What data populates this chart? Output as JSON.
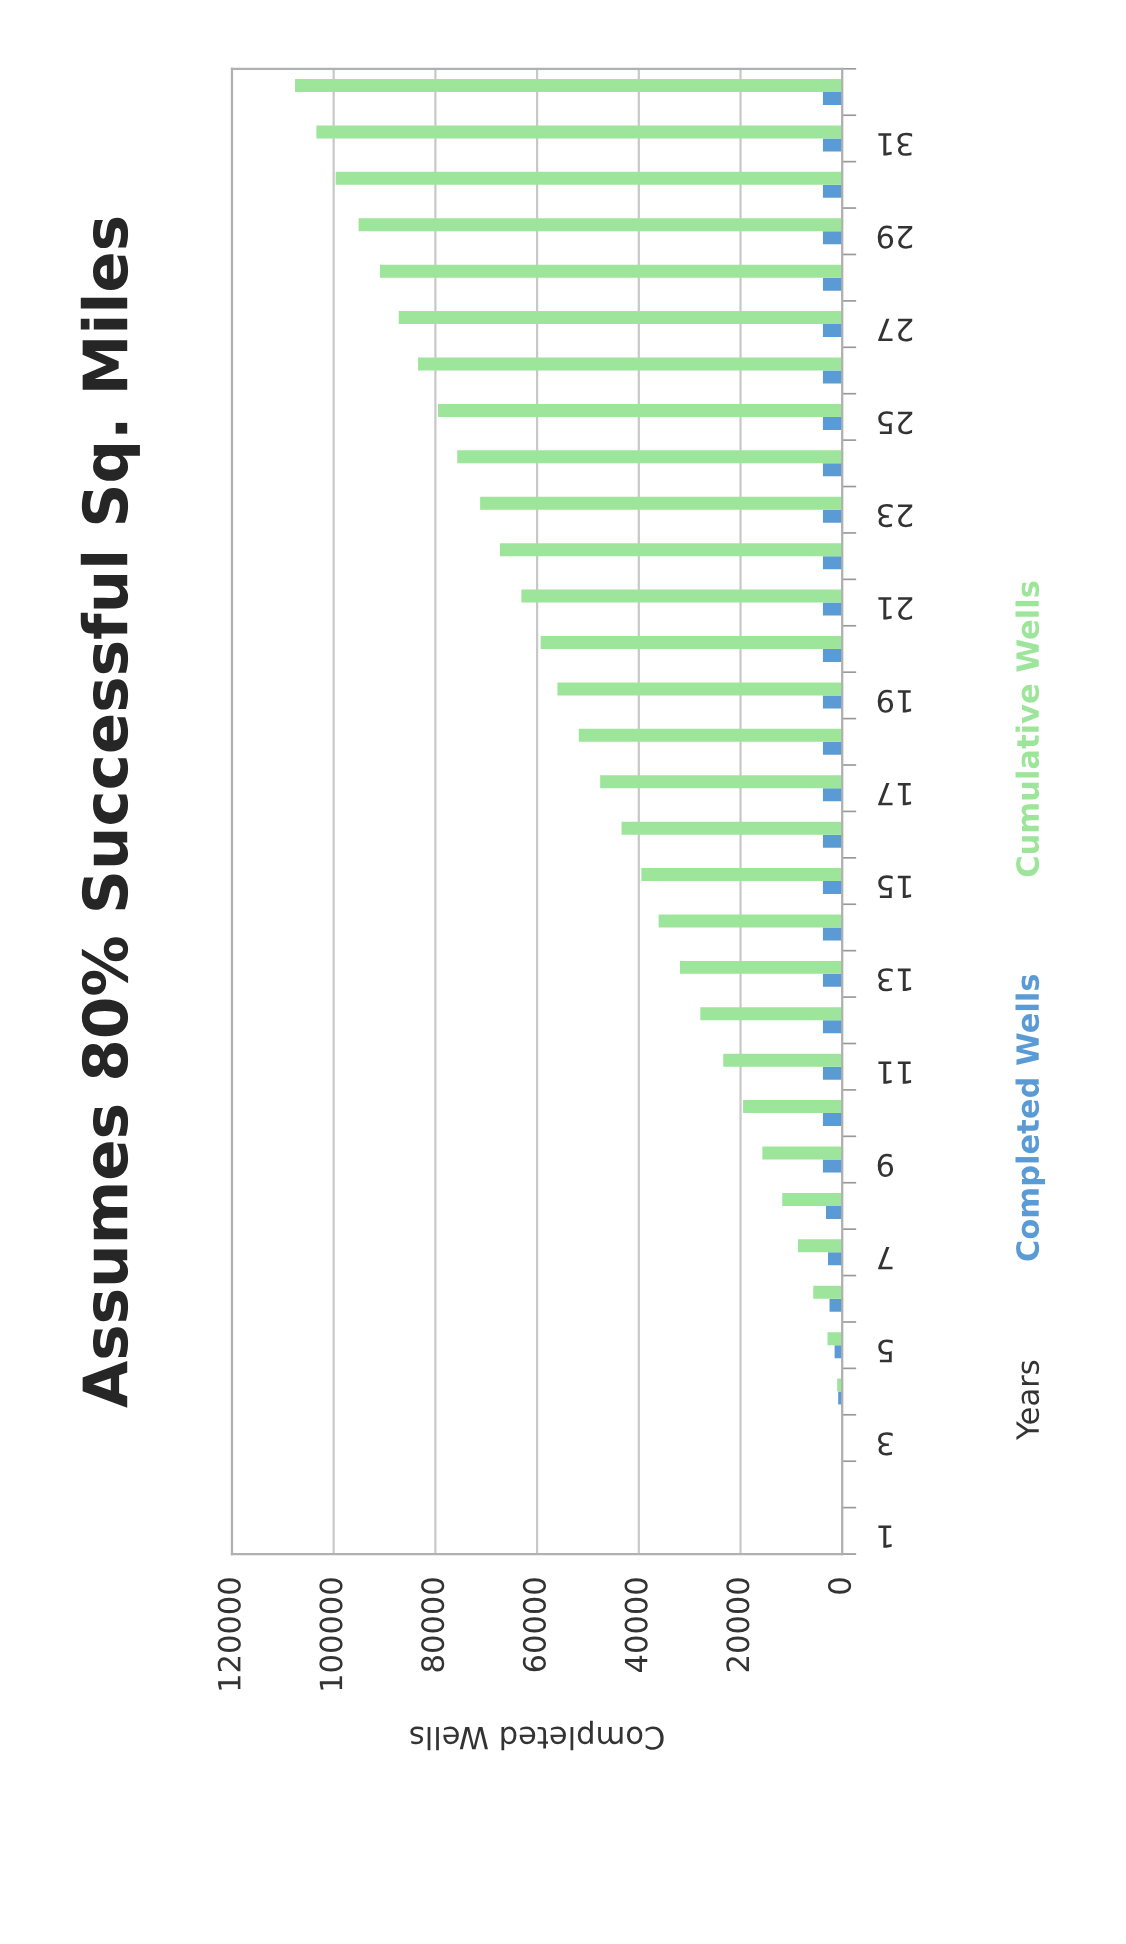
{
  "chart_data": {
    "type": "bar",
    "orientation": "horizontal",
    "title": "Assumes 80% Successful Sq. Miles",
    "xlabel": "Completed Wells",
    "ylabel": "Years",
    "categories": [
      null,
      "31",
      null,
      "29",
      null,
      "27",
      null,
      "25",
      null,
      "23",
      null,
      "21",
      null,
      "19",
      null,
      "17",
      null,
      "15",
      null,
      "13",
      null,
      "11",
      null,
      "9",
      null,
      "7",
      null,
      "5",
      null,
      "3",
      null,
      "1"
    ],
    "series": [
      {
        "name": "Completed Wells",
        "color": "#5b9bd5",
        "values": [
          3800,
          3800,
          3800,
          3800,
          3800,
          3800,
          3800,
          3800,
          3800,
          3800,
          3800,
          3800,
          3800,
          3800,
          3800,
          3800,
          3800,
          3800,
          3800,
          3800,
          3800,
          3800,
          3800,
          3800,
          3200,
          2800,
          2500,
          1500,
          800,
          null,
          0,
          0
        ]
      },
      {
        "name": "Cumulative Wells",
        "color": "#9de59a",
        "values": [
          107600,
          103400,
          99600,
          95100,
          90900,
          87200,
          83400,
          79500,
          75700,
          71200,
          67300,
          63100,
          59300,
          56000,
          51800,
          47600,
          43400,
          39500,
          36100,
          31900,
          27900,
          23400,
          19500,
          15700,
          11800,
          8700,
          5700,
          2900,
          1000,
          null,
          0,
          0
        ]
      }
    ],
    "xlim": [
      120000,
      0
    ],
    "xticks": [
      120000,
      100000,
      80000,
      60000,
      40000,
      20000,
      0
    ],
    "grid": "x",
    "legend": "right"
  }
}
